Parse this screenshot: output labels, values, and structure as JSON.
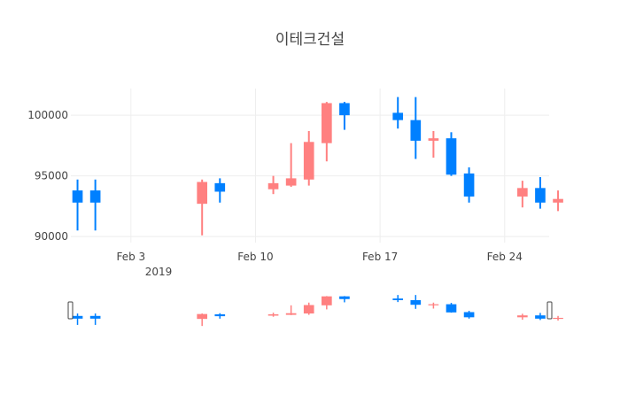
{
  "chart_data": {
    "type": "candlestick",
    "title": "이테크건설",
    "year_label": "2019",
    "increasing_color": "#ff8080",
    "decreasing_color": "#0080ff",
    "ylim": [
      89500,
      102200
    ],
    "yticks": [
      90000,
      95000,
      100000
    ],
    "ytick_labels": [
      "90000",
      "95000",
      "100000"
    ],
    "xlim": [
      "2019-01-30T15:00",
      "2019-02-26T12:00"
    ],
    "xticks": [
      "2019-02-03",
      "2019-02-10",
      "2019-02-17",
      "2019-02-24"
    ],
    "xtick_labels": [
      "Feb 3",
      "Feb 10",
      "Feb 17",
      "Feb 24"
    ],
    "grid": true,
    "rangeslider": true,
    "candles": [
      {
        "date": "2019-01-31",
        "open": 93800,
        "high": 94700,
        "low": 90500,
        "close": 92800
      },
      {
        "date": "2019-02-01",
        "open": 93800,
        "high": 94700,
        "low": 90500,
        "close": 92800
      },
      {
        "date": "2019-02-07",
        "open": 92700,
        "high": 94700,
        "low": 90100,
        "close": 94500
      },
      {
        "date": "2019-02-08",
        "open": 94400,
        "high": 94800,
        "low": 92800,
        "close": 93700
      },
      {
        "date": "2019-02-11",
        "open": 93900,
        "high": 95000,
        "low": 93500,
        "close": 94400
      },
      {
        "date": "2019-02-12",
        "open": 94200,
        "high": 97700,
        "low": 94100,
        "close": 94800
      },
      {
        "date": "2019-02-13",
        "open": 94700,
        "high": 98700,
        "low": 94200,
        "close": 97800
      },
      {
        "date": "2019-02-14",
        "open": 97700,
        "high": 101100,
        "low": 96200,
        "close": 101000
      },
      {
        "date": "2019-02-15",
        "open": 101000,
        "high": 101100,
        "low": 98800,
        "close": 100000
      },
      {
        "date": "2019-02-18",
        "open": 100200,
        "high": 101500,
        "low": 98900,
        "close": 99600
      },
      {
        "date": "2019-02-19",
        "open": 99600,
        "high": 101500,
        "low": 96400,
        "close": 97900
      },
      {
        "date": "2019-02-20",
        "open": 97900,
        "high": 98700,
        "low": 96500,
        "close": 98100
      },
      {
        "date": "2019-02-21",
        "open": 98100,
        "high": 98600,
        "low": 95000,
        "close": 95100
      },
      {
        "date": "2019-02-22",
        "open": 95200,
        "high": 95700,
        "low": 92800,
        "close": 93300
      },
      {
        "date": "2019-02-25",
        "open": 93300,
        "high": 94600,
        "low": 92400,
        "close": 94000
      },
      {
        "date": "2019-02-26",
        "open": 94000,
        "high": 94900,
        "low": 92300,
        "close": 92800
      },
      {
        "date": "2019-02-27",
        "open": 92800,
        "high": 93800,
        "low": 92100,
        "close": 93100
      }
    ]
  }
}
